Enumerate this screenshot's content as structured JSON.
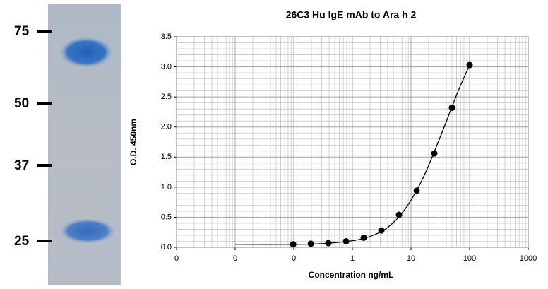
{
  "gel": {
    "markers": [
      "75",
      "50",
      "37",
      "25"
    ]
  },
  "chart_data": {
    "type": "scatter",
    "title": "26C3 Hu IgE mAb to Ara h 2",
    "x_label": "Concentration ng/mL",
    "y_label": "O.D. 450nm",
    "x": [
      0.09765625,
      0.1953125,
      0.390625,
      0.78125,
      1.5625,
      3.125,
      6.25,
      12.5,
      25,
      50,
      100
    ],
    "values": [
      0.05,
      0.06,
      0.07,
      0.1,
      0.16,
      0.28,
      0.54,
      0.94,
      1.56,
      2.32,
      3.03
    ],
    "fit_x": [
      0.01,
      0.1,
      0.3,
      1,
      2,
      4,
      8,
      16,
      32,
      64,
      100
    ],
    "fit_values": [
      0.05,
      0.05,
      0.06,
      0.11,
      0.18,
      0.33,
      0.64,
      1.15,
      1.85,
      2.6,
      3.03
    ],
    "color": "#000000",
    "xlog": true,
    "xlim": [
      0.001,
      1000
    ],
    "xticks": [
      {
        "value": 0.001,
        "label": "0"
      },
      {
        "value": 0.01,
        "label": "0"
      },
      {
        "value": 0.1,
        "label": "0"
      },
      1,
      10,
      100,
      1000
    ],
    "ylim": [
      0,
      3.5
    ],
    "yticks": [
      {
        "value": 0,
        "label": "0.0"
      },
      {
        "value": 0.5,
        "label": "0.5"
      },
      {
        "value": 1,
        "label": "1.0"
      },
      {
        "value": 1.5,
        "label": "1.5"
      },
      {
        "value": 2,
        "label": "2.0"
      },
      {
        "value": 2.5,
        "label": "2.5"
      },
      {
        "value": 3,
        "label": "3.0"
      },
      {
        "value": 3.5,
        "label": "3.5"
      }
    ],
    "grid": true,
    "minor_grid": true
  }
}
